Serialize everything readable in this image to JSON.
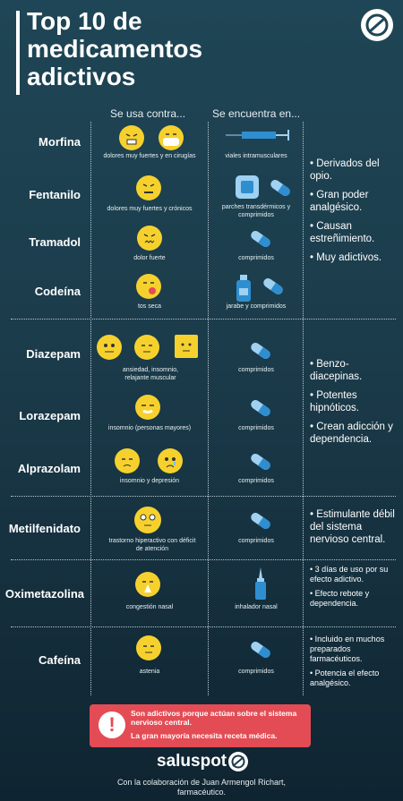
{
  "title": {
    "line1": "Top 10 de",
    "line2": "medicamentos",
    "line3": "adictivos"
  },
  "headers": {
    "use": "Se usa contra...",
    "found": "Se encuentra en..."
  },
  "drugs": [
    {
      "name": "Morfina",
      "use": "dolores muy fuertes y en cirugías",
      "form": "viales intramusculares"
    },
    {
      "name": "Fentanilo",
      "use": "dolores muy fuertes y crónicos",
      "form": "parches transdérmicos y comprimidos"
    },
    {
      "name": "Tramadol",
      "use": "dolor fuerte",
      "form": "comprimidos"
    },
    {
      "name": "Codeína",
      "use": "tos seca",
      "form": "jarabe y comprimidos"
    },
    {
      "name": "Diazepam",
      "use": "ansiedad, insomnio, relajante muscular",
      "form": "comprimidos"
    },
    {
      "name": "Lorazepam",
      "use": "insomnio (personas mayores)",
      "form": "comprimidos"
    },
    {
      "name": "Alprazolam",
      "use": "insomnio y depresión",
      "form": "comprimidos"
    },
    {
      "name": "Metilfenidato",
      "use": "trastorno hiperactivo con déficit de atención",
      "form": "comprimidos"
    },
    {
      "name": "Oximetazolina",
      "use": "congestión nasal",
      "form": "inhalador nasal"
    },
    {
      "name": "Cafeína",
      "use": "astenia",
      "form": "comprimidos"
    }
  ],
  "notes": {
    "opioids": [
      "• Derivados del opio.",
      "• Gran poder analgésico.",
      "• Causan estreñimiento.",
      "• Muy adictivos."
    ],
    "benzos": [
      "• Benzo-diacepinas.",
      "• Potentes hipnóticos.",
      "• Crean adicción y dependencia."
    ],
    "metil": [
      "• Estimulante débil del sistema nervioso central."
    ],
    "oxi": [
      "• 3 días de uso por su efecto adictivo.",
      "• Efecto rebote y dependencia."
    ],
    "cafe": [
      "• Incluido en muchos preparados farmacéuticos.",
      "• Potencia el efecto analgésico."
    ]
  },
  "alert": {
    "icon": "!",
    "line1": "Son adictivos porque actúan sobre el sistema nervioso central.",
    "line2": "La gran mayoría necesita receta médica."
  },
  "footer": {
    "brand": "saluspot",
    "collab1": "Con la colaboración de Juan Armengol Richart,",
    "collab2": "farmacéutico."
  },
  "colors": {
    "face": "#f6d12d",
    "pill_light": "#9fd1f2",
    "pill_dark": "#2f8ed0",
    "alert": "#e34c55"
  }
}
